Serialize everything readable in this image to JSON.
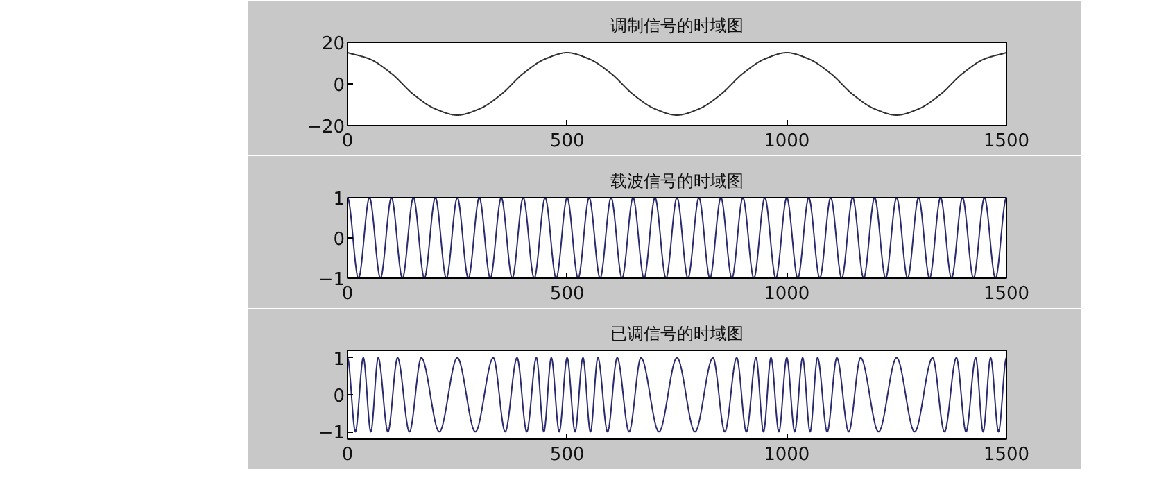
{
  "chart_data": [
    {
      "type": "line",
      "title": "调制信号的时域图",
      "xlim": [
        0,
        1500
      ],
      "ylim": [
        -20,
        20
      ],
      "xticks": [
        0,
        500,
        1000,
        1500
      ],
      "yticks": [
        -20,
        0,
        20
      ],
      "series": [
        {
          "color": "#303030",
          "x": [
            0,
            50,
            100,
            150,
            200,
            250,
            300,
            350,
            400,
            450,
            500,
            550,
            600,
            650,
            700,
            750,
            800,
            850,
            900,
            950,
            1000,
            1050,
            1100,
            1150,
            1200,
            1250,
            1300,
            1350,
            1400,
            1450,
            1500
          ],
          "values": [
            15,
            12,
            5,
            -5,
            -12,
            -15,
            -12,
            -5,
            5,
            12,
            15,
            12,
            5,
            -5,
            -12,
            -15,
            -12,
            -5,
            5,
            12,
            15,
            12,
            5,
            -5,
            -12,
            -15,
            -12,
            -5,
            5,
            12,
            15
          ]
        }
      ]
    },
    {
      "type": "line",
      "title": "载波信号的时域图",
      "xlim": [
        0,
        1500
      ],
      "ylim": [
        -1,
        1
      ],
      "xticks": [
        0,
        500,
        1000,
        1500
      ],
      "yticks": [
        -1,
        0,
        1
      ],
      "series": [
        {
          "color": "#2a2a6e",
          "x": [
            0,
            25,
            50,
            75,
            100,
            125,
            150,
            175,
            200,
            225,
            250,
            275,
            300,
            325,
            350,
            375,
            400,
            425,
            450,
            475,
            500,
            525,
            550,
            575,
            600,
            625,
            650,
            675,
            700,
            725,
            750,
            775,
            800,
            825,
            850,
            875,
            900,
            925,
            950,
            975,
            1000,
            1025,
            1050,
            1075,
            1100,
            1125,
            1150,
            1175,
            1200,
            1225,
            1250,
            1275,
            1300,
            1325,
            1350,
            1375,
            1400,
            1425,
            1450,
            1475,
            1500
          ],
          "values": [
            1,
            -1,
            1,
            -1,
            1,
            -1,
            1,
            -1,
            1,
            -1,
            1,
            -1,
            1,
            -1,
            1,
            -1,
            1,
            -1,
            1,
            -1,
            1,
            -1,
            1,
            -1,
            1,
            -1,
            1,
            -1,
            1,
            -1,
            1,
            -1,
            1,
            -1,
            1,
            -1,
            1,
            -1,
            1,
            -1,
            1,
            -1,
            1,
            -1,
            1,
            -1,
            1,
            -1,
            1,
            -1,
            1,
            -1,
            1,
            -1,
            1,
            -1,
            1,
            -1,
            1,
            -1,
            1
          ]
        }
      ]
    },
    {
      "type": "line",
      "title": "已调信号的时域图",
      "xlim": [
        0,
        1500
      ],
      "ylim": [
        -1.2,
        1.2
      ],
      "xticks": [
        0,
        500,
        1000,
        1500
      ],
      "yticks": [
        -1,
        0,
        1
      ],
      "series": [
        {
          "color": "#2a2a6e",
          "x": [
            0,
            18,
            36,
            53,
            70,
            92,
            114,
            141,
            168,
            209,
            250,
            291,
            332,
            359,
            386,
            408,
            430,
            447,
            464,
            482,
            500,
            518,
            536,
            553,
            570,
            592,
            614,
            641,
            668,
            709,
            750,
            791,
            832,
            859,
            886,
            908,
            930,
            947,
            964,
            982,
            1000,
            1018,
            1036,
            1053,
            1070,
            1092,
            1114,
            1141,
            1168,
            1209,
            1250,
            1291,
            1332,
            1359,
            1386,
            1408,
            1430,
            1447,
            1464,
            1482,
            1500
          ],
          "values": [
            1,
            -1,
            1,
            -1,
            1,
            -1,
            1,
            -1,
            1,
            -1,
            1,
            -1,
            1,
            -1,
            1,
            -1,
            1,
            -1,
            1,
            -1,
            1,
            -1,
            1,
            -1,
            1,
            -1,
            1,
            -1,
            1,
            -1,
            1,
            -1,
            1,
            -1,
            1,
            -1,
            1,
            -1,
            1,
            -1,
            1,
            -1,
            1,
            -1,
            1,
            -1,
            1,
            -1,
            1,
            -1,
            1,
            -1,
            1,
            -1,
            1,
            -1,
            1,
            -1,
            1,
            -1,
            1
          ]
        }
      ]
    }
  ]
}
